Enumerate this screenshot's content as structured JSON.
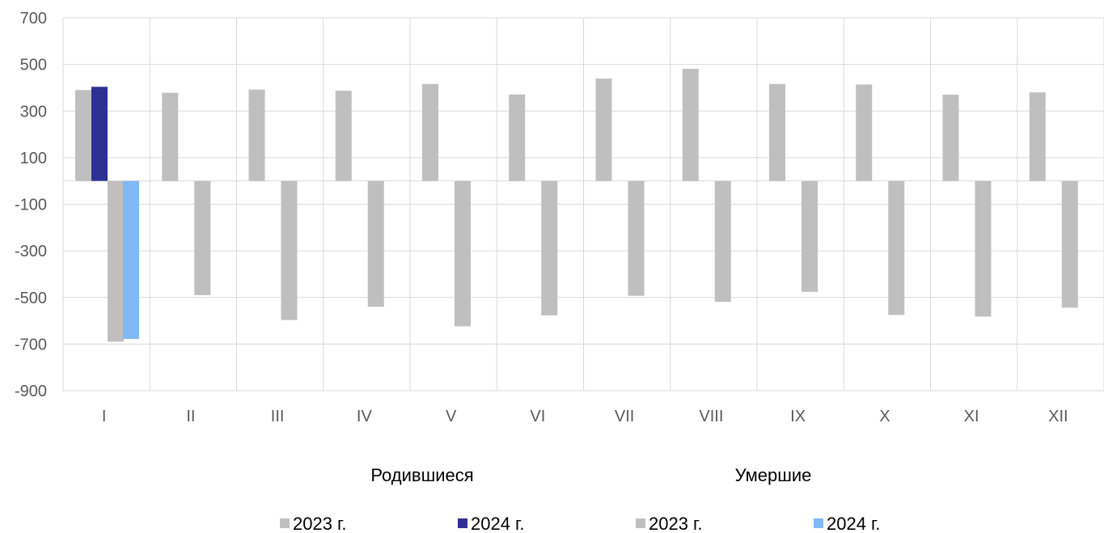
{
  "chart_data": {
    "type": "bar",
    "categories": [
      "I",
      "II",
      "III",
      "IV",
      "V",
      "VI",
      "VII",
      "VIII",
      "IX",
      "X",
      "XI",
      "XII"
    ],
    "yticks": [
      700,
      500,
      300,
      100,
      -100,
      -300,
      -500,
      -700,
      -900
    ],
    "ylim": [
      -900,
      700
    ],
    "grid": true,
    "group_titles": [
      "Родившиеся",
      "Умершие"
    ],
    "legend_position": "bottom",
    "series": [
      {
        "name": "2023 г.",
        "group": "Родившиеся",
        "color": "#bfbfbf",
        "values": [
          390,
          378,
          392,
          387,
          416,
          371,
          439,
          481,
          416,
          414,
          370,
          380
        ]
      },
      {
        "name": "2024 г.",
        "group": "Родившиеся",
        "color": "#2e3192",
        "values": [
          404,
          null,
          null,
          null,
          null,
          null,
          null,
          null,
          null,
          null,
          null,
          null
        ]
      },
      {
        "name": "2023 г.",
        "group": "Умершие",
        "color": "#bfbfbf",
        "values": [
          -690,
          -490,
          -597,
          -540,
          -624,
          -577,
          -493,
          -519,
          -476,
          -575,
          -582,
          -544
        ]
      },
      {
        "name": "2024 г.",
        "group": "Умершие",
        "color": "#7eb9f4",
        "values": [
          -678,
          null,
          null,
          null,
          null,
          null,
          null,
          null,
          null,
          null,
          null,
          null
        ]
      }
    ]
  }
}
